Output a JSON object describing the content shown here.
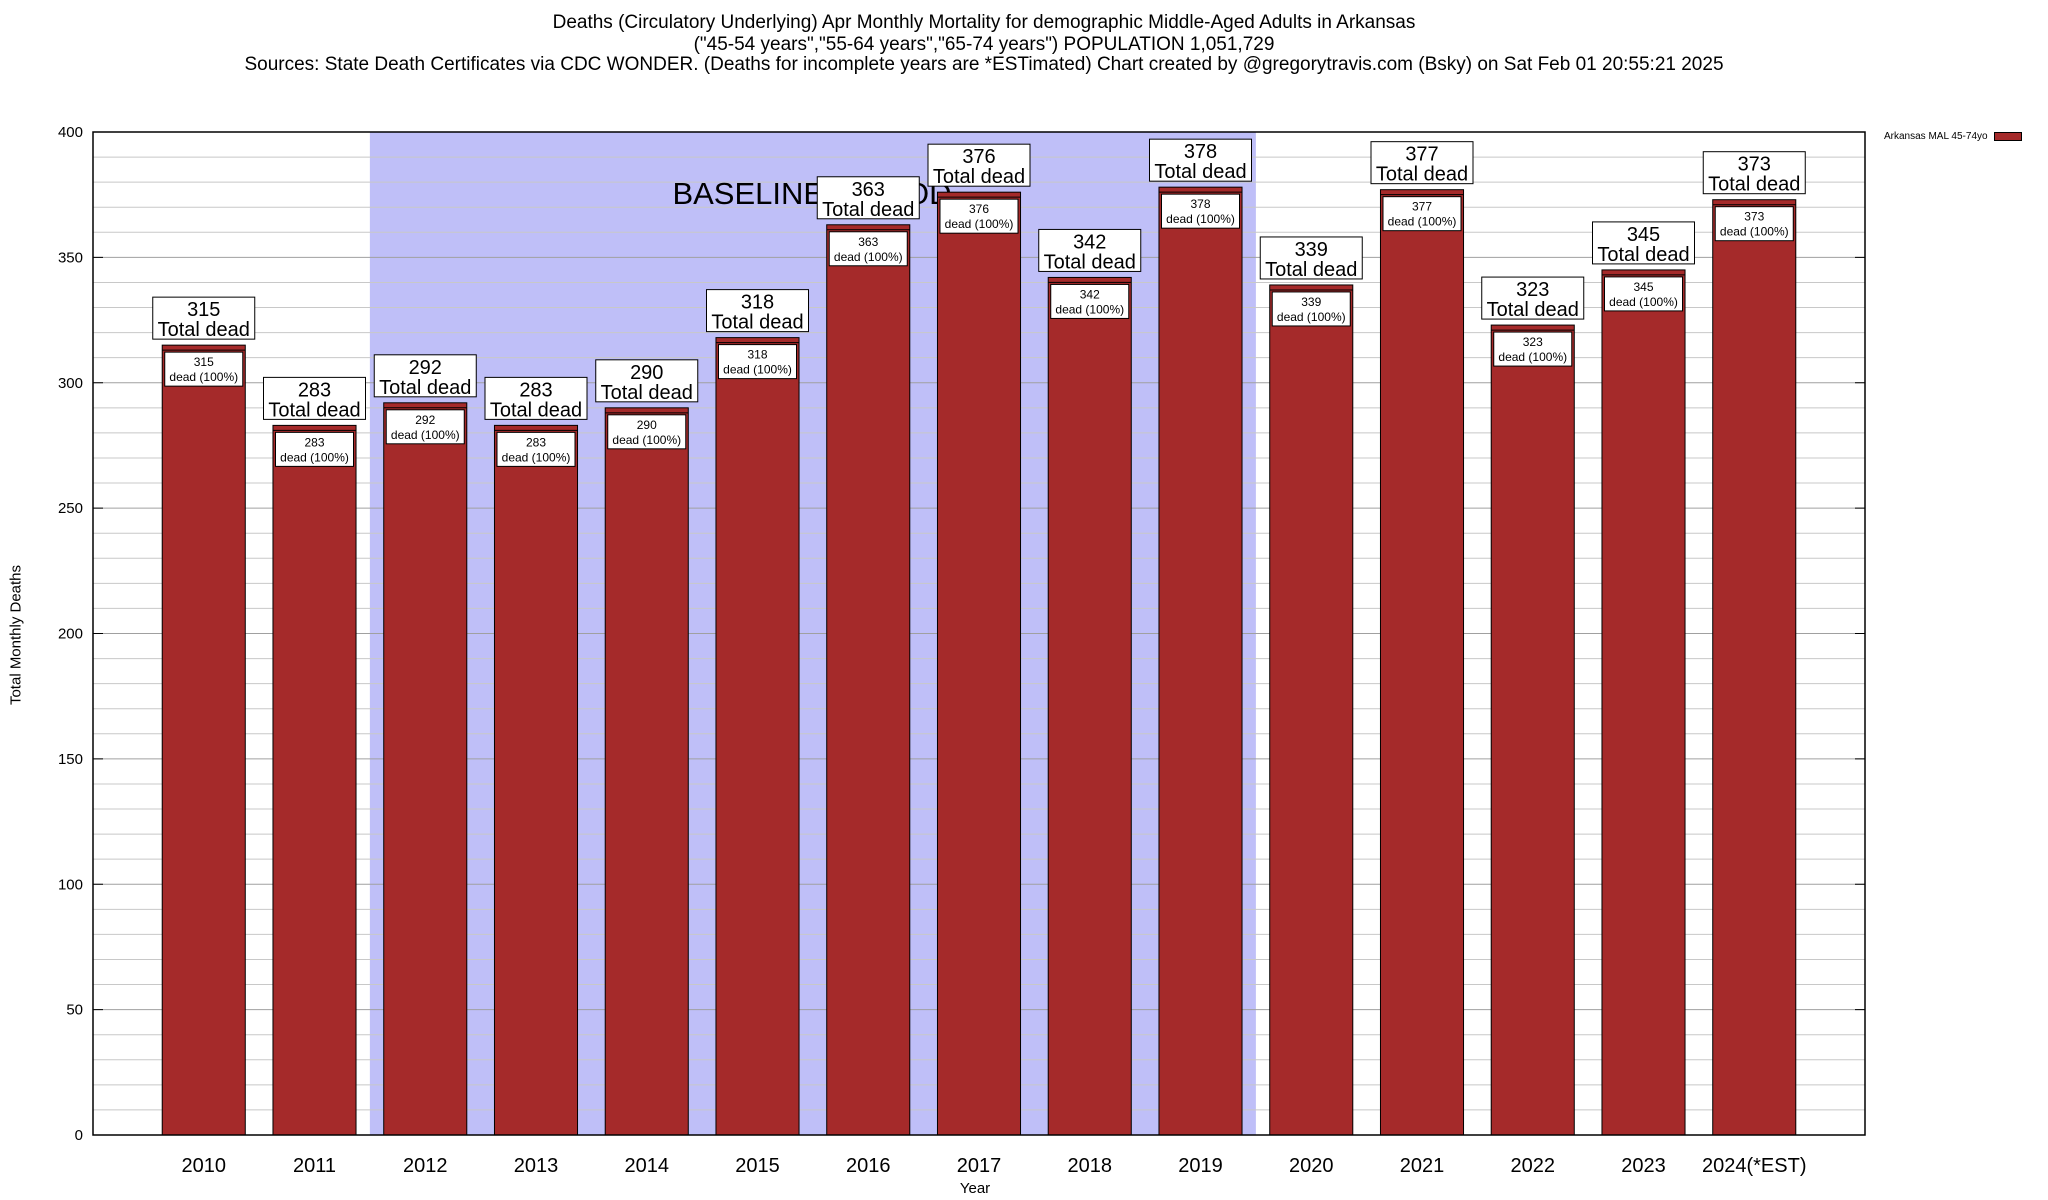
{
  "title": {
    "line1": "Deaths (Circulatory Underlying) Apr Monthly Mortality for demographic Middle-Aged Adults in Arkansas",
    "line2": "(\"45-54 years\",\"55-64 years\",\"65-74 years\") POPULATION 1,051,729",
    "line3": "Sources: State Death Certificates via CDC WONDER. (Deaths for incomplete years are *ESTimated)                Chart created by @gregorytravis.com (Bsky) on Sat Feb 01 20:55:21 2025"
  },
  "legend": {
    "label": "Arkansas MAL 45-74yo"
  },
  "chart_data": {
    "type": "bar",
    "xlabel": "Year",
    "ylabel": "Total Monthly Deaths",
    "ylim": [
      0,
      400
    ],
    "yticks": [
      0,
      50,
      100,
      150,
      200,
      250,
      300,
      350,
      400
    ],
    "categories": [
      "2010",
      "2011",
      "2012",
      "2013",
      "2014",
      "2015",
      "2016",
      "2017",
      "2018",
      "2019",
      "2020",
      "2021",
      "2022",
      "2023",
      "2024(*EST)"
    ],
    "series": [
      {
        "name": "Arkansas MAL 45-74yo",
        "color": "#a52a2a",
        "values": [
          315,
          283,
          292,
          283,
          290,
          318,
          363,
          376,
          342,
          378,
          339,
          377,
          323,
          345,
          373
        ]
      }
    ],
    "total_label": "Total dead",
    "inner_label": "dead (100%)",
    "baseline": {
      "label": "BASELINE PERIOD",
      "from": "2012",
      "to": "2019",
      "color": "#bfbff8"
    },
    "grid": true,
    "legend_position": "top-right"
  }
}
